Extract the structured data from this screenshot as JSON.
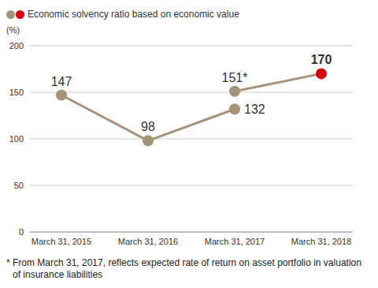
{
  "chart_data": {
    "type": "line",
    "legend_label": "Economic solvency ratio based on economic value",
    "ylabel": "(%)",
    "categories": [
      "March 31, 2015",
      "March 31, 2016",
      "March 31, 2017",
      "March 31, 2018"
    ],
    "series": [
      {
        "name": "Economic solvency ratio based on economic value",
        "color": "#a49279",
        "marker": "circle",
        "values": [
          147,
          98,
          132,
          null
        ]
      },
      {
        "color": "#a49279",
        "colors": [
          "#a49279",
          "#a49279",
          "#a49279",
          "#d7000f"
        ],
        "marker": "circle",
        "values": [
          null,
          null,
          151,
          170
        ],
        "value_labels": [
          null,
          null,
          "151*",
          "170"
        ]
      }
    ],
    "ylim": [
      0,
      200
    ],
    "yticks": [
      0,
      50,
      100,
      150,
      200
    ],
    "grid": true,
    "data_labels": true,
    "footnote": "* From March 31, 2017, reflects expected rate of return on asset portfolio in valuation of insurance liabilities"
  }
}
